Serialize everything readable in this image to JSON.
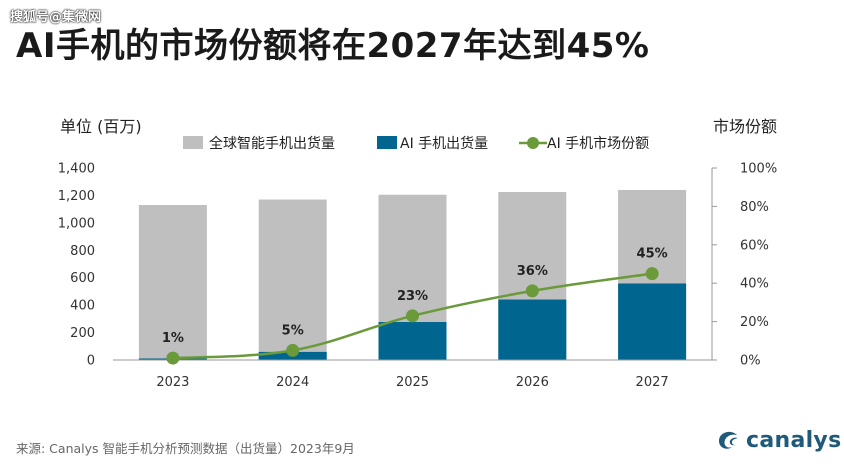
{
  "watermark": "搜狐号@集微网",
  "title": "AI手机的市场份额将在2027年达到45%",
  "left_axis_title": "单位 (百万)",
  "right_axis_title": "市场份额",
  "source": "来源: Canalys 智能手机分析预测数据（出货量）2023年9月",
  "logo": {
    "text": "canalys",
    "icon": "canalys-swirl-icon"
  },
  "colors": {
    "total": "#bfbfbf",
    "ai": "#006690",
    "share": "#6a9a3a"
  },
  "chart_data": {
    "type": "bar",
    "categories": [
      "2023",
      "2024",
      "2025",
      "2026",
      "2027"
    ],
    "series": [
      {
        "name": "全球智能手机出货量",
        "type": "bar",
        "axis": "left",
        "values": [
          1130,
          1170,
          1205,
          1225,
          1240
        ]
      },
      {
        "name": "AI 手机出货量",
        "type": "bar",
        "axis": "left",
        "values": [
          11,
          59,
          277,
          441,
          558
        ]
      },
      {
        "name": "AI 手机市场份额",
        "type": "line",
        "axis": "right",
        "values": [
          1,
          5,
          23,
          36,
          45
        ],
        "labels": [
          "1%",
          "5%",
          "23%",
          "36%",
          "45%"
        ]
      }
    ],
    "ylim": [
      0,
      1400
    ],
    "yticks": [
      "0",
      "200",
      "400",
      "600",
      "800",
      "1,000",
      "1,200",
      "1,400"
    ],
    "y2lim": [
      0,
      100
    ],
    "y2ticks": [
      "0%",
      "20%",
      "40%",
      "60%",
      "80%",
      "100%"
    ],
    "legend_position": "top",
    "grid": false
  }
}
